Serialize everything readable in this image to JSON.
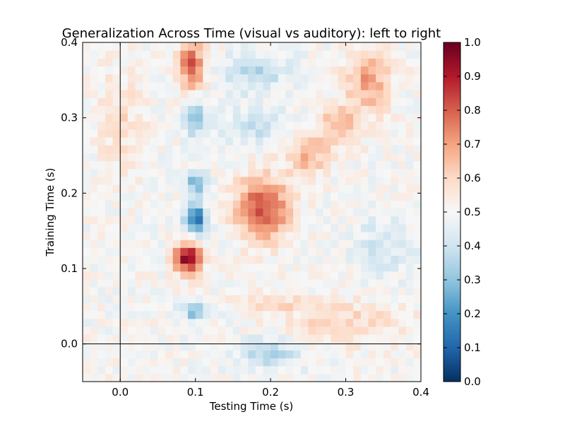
{
  "chart_data": {
    "type": "heatmap",
    "title": "Generalization Across Time (visual vs auditory): left to right",
    "xlabel": "Testing Time (s)",
    "ylabel": "Training Time (s)",
    "xlim": [
      -0.05,
      0.4
    ],
    "ylim": [
      -0.05,
      0.4
    ],
    "xticks": [
      "0.0",
      "0.1",
      "0.2",
      "0.3",
      "0.4"
    ],
    "yticks": [
      "0.0",
      "0.1",
      "0.2",
      "0.3",
      "0.4"
    ],
    "zero_lines": true,
    "colorbar": {
      "vmin": 0.0,
      "vmax": 1.0,
      "ticks": [
        "0.0",
        "0.1",
        "0.2",
        "0.3",
        "0.4",
        "0.5",
        "0.6",
        "0.7",
        "0.8",
        "0.9",
        "1.0"
      ],
      "colormap": "RdBu_r"
    },
    "grid": {
      "rows": 43,
      "cols": 45,
      "baseline": 0.5,
      "blobs": [
        {
          "x": 0.09,
          "y": 0.115,
          "sx": 0.012,
          "sy": 0.015,
          "amp": 0.47
        },
        {
          "x": 0.1,
          "y": 0.165,
          "sx": 0.01,
          "sy": 0.015,
          "amp": -0.38
        },
        {
          "x": 0.1,
          "y": 0.215,
          "sx": 0.01,
          "sy": 0.01,
          "amp": -0.26
        },
        {
          "x": 0.1,
          "y": 0.045,
          "sx": 0.012,
          "sy": 0.008,
          "amp": -0.25
        },
        {
          "x": 0.095,
          "y": 0.37,
          "sx": 0.012,
          "sy": 0.025,
          "amp": 0.3
        },
        {
          "x": 0.1,
          "y": 0.3,
          "sx": 0.012,
          "sy": 0.02,
          "amp": -0.18
        },
        {
          "x": 0.19,
          "y": 0.18,
          "sx": 0.025,
          "sy": 0.03,
          "amp": 0.33
        },
        {
          "x": 0.25,
          "y": 0.25,
          "sx": 0.018,
          "sy": 0.018,
          "amp": 0.18
        },
        {
          "x": 0.29,
          "y": 0.29,
          "sx": 0.02,
          "sy": 0.018,
          "amp": 0.17
        },
        {
          "x": 0.33,
          "y": 0.35,
          "sx": 0.02,
          "sy": 0.03,
          "amp": 0.2
        },
        {
          "x": 0.18,
          "y": 0.36,
          "sx": 0.03,
          "sy": 0.02,
          "amp": -0.13
        },
        {
          "x": 0.18,
          "y": 0.29,
          "sx": 0.03,
          "sy": 0.015,
          "amp": -0.12
        },
        {
          "x": 0.2,
          "y": -0.01,
          "sx": 0.03,
          "sy": 0.015,
          "amp": -0.14
        },
        {
          "x": 0.3,
          "y": 0.03,
          "sx": 0.06,
          "sy": 0.02,
          "amp": 0.1
        },
        {
          "x": 0.2,
          "y": 0.055,
          "sx": 0.03,
          "sy": 0.008,
          "amp": 0.1
        },
        {
          "x": 0.0,
          "y": 0.3,
          "sx": 0.02,
          "sy": 0.05,
          "amp": 0.08
        },
        {
          "x": 0.35,
          "y": 0.13,
          "sx": 0.03,
          "sy": 0.03,
          "amp": -0.08
        }
      ],
      "noise": 0.05
    }
  }
}
